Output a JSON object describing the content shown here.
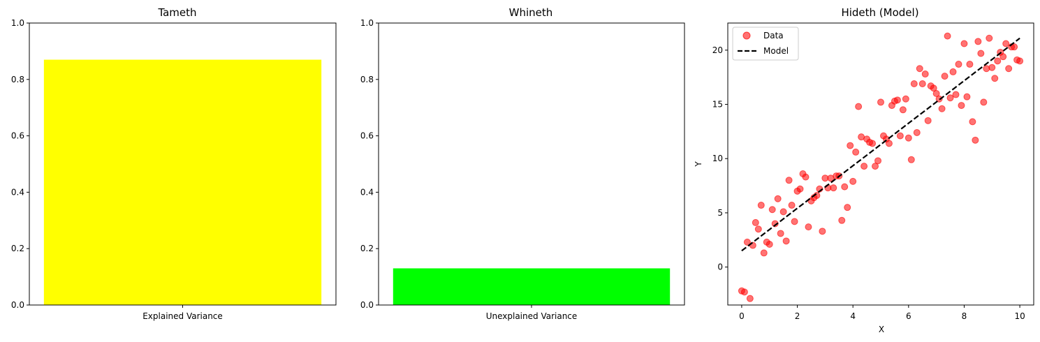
{
  "chart_data": [
    {
      "type": "bar",
      "title": "Tameth",
      "categories": [
        "Explained Variance"
      ],
      "values": [
        0.87
      ],
      "colors": [
        "#ffff00"
      ],
      "ylim": [
        0,
        1.0
      ],
      "yticks": [
        "0.0",
        "0.2",
        "0.4",
        "0.6",
        "0.8",
        "1.0"
      ],
      "grid": false
    },
    {
      "type": "bar",
      "title": "Whineth",
      "categories": [
        "Unexplained Variance"
      ],
      "values": [
        0.13
      ],
      "colors": [
        "#00ff00"
      ],
      "ylim": [
        0,
        1.0
      ],
      "yticks": [
        "0.0",
        "0.2",
        "0.4",
        "0.6",
        "0.8",
        "1.0"
      ],
      "grid": false
    },
    {
      "type": "scatter",
      "title": "Hideth (Model)",
      "xlabel": "X",
      "ylabel": "Y",
      "xlim": [
        -0.5,
        10.5
      ],
      "ylim": [
        -3.5,
        22.5
      ],
      "xticks": [
        "0",
        "2",
        "4",
        "6",
        "8",
        "10"
      ],
      "yticks": [
        "0",
        "5",
        "10",
        "15",
        "20"
      ],
      "legend_position": "top-left",
      "grid": false,
      "series": [
        {
          "name": "Data",
          "kind": "scatter",
          "color": "#ff0000",
          "x": [
            0.0,
            0.1,
            0.2,
            0.3,
            0.4,
            0.5,
            0.6,
            0.7,
            0.8,
            0.9,
            1.0,
            1.1,
            1.2,
            1.3,
            1.4,
            1.5,
            1.6,
            1.7,
            1.8,
            1.9,
            2.0,
            2.1,
            2.2,
            2.3,
            2.4,
            2.5,
            2.6,
            2.7,
            2.8,
            2.9,
            3.0,
            3.1,
            3.2,
            3.3,
            3.4,
            3.5,
            3.6,
            3.7,
            3.8,
            3.9,
            4.0,
            4.1,
            4.2,
            4.3,
            4.4,
            4.5,
            4.6,
            4.7,
            4.8,
            4.9,
            5.0,
            5.1,
            5.2,
            5.3,
            5.4,
            5.5,
            5.6,
            5.7,
            5.8,
            5.9,
            6.0,
            6.1,
            6.2,
            6.3,
            6.4,
            6.5,
            6.6,
            6.7,
            6.8,
            6.9,
            7.0,
            7.1,
            7.2,
            7.3,
            7.4,
            7.5,
            7.6,
            7.7,
            7.8,
            7.9,
            8.0,
            8.1,
            8.2,
            8.3,
            8.4,
            8.5,
            8.6,
            8.7,
            8.8,
            8.9,
            9.0,
            9.1,
            9.2,
            9.3,
            9.4,
            9.5,
            9.6,
            9.7,
            9.8,
            9.9,
            10.0
          ],
          "y": [
            -2.2,
            -2.3,
            2.3,
            -2.9,
            2.0,
            4.1,
            3.5,
            5.7,
            1.3,
            2.3,
            2.1,
            5.3,
            4.0,
            6.3,
            3.1,
            5.1,
            2.4,
            8.0,
            5.7,
            4.2,
            7.0,
            7.2,
            8.6,
            8.3,
            3.7,
            6.1,
            6.4,
            6.6,
            7.2,
            3.3,
            8.2,
            7.3,
            8.2,
            7.3,
            8.4,
            8.4,
            4.3,
            7.4,
            5.5,
            11.2,
            7.9,
            10.6,
            14.8,
            12.0,
            9.3,
            11.8,
            11.5,
            11.4,
            9.3,
            9.8,
            15.2,
            12.1,
            11.8,
            11.4,
            14.9,
            15.3,
            15.4,
            12.1,
            14.5,
            15.5,
            11.9,
            9.9,
            16.9,
            12.4,
            18.3,
            16.9,
            17.8,
            13.5,
            16.7,
            16.5,
            16.0,
            15.5,
            14.6,
            17.6,
            21.3,
            15.6,
            18.0,
            15.9,
            18.7,
            14.9,
            20.6,
            15.7,
            18.7,
            13.4,
            11.7,
            20.8,
            19.7,
            15.2,
            18.3,
            21.1,
            18.4,
            17.4,
            19.0,
            19.8,
            19.4,
            20.6,
            18.3,
            20.3,
            20.3,
            19.1,
            19.0
          ]
        },
        {
          "name": "Model",
          "kind": "line",
          "style": "dashed",
          "color": "#000000",
          "x": [
            0,
            10
          ],
          "y": [
            1.5,
            21.1
          ]
        }
      ]
    }
  ]
}
